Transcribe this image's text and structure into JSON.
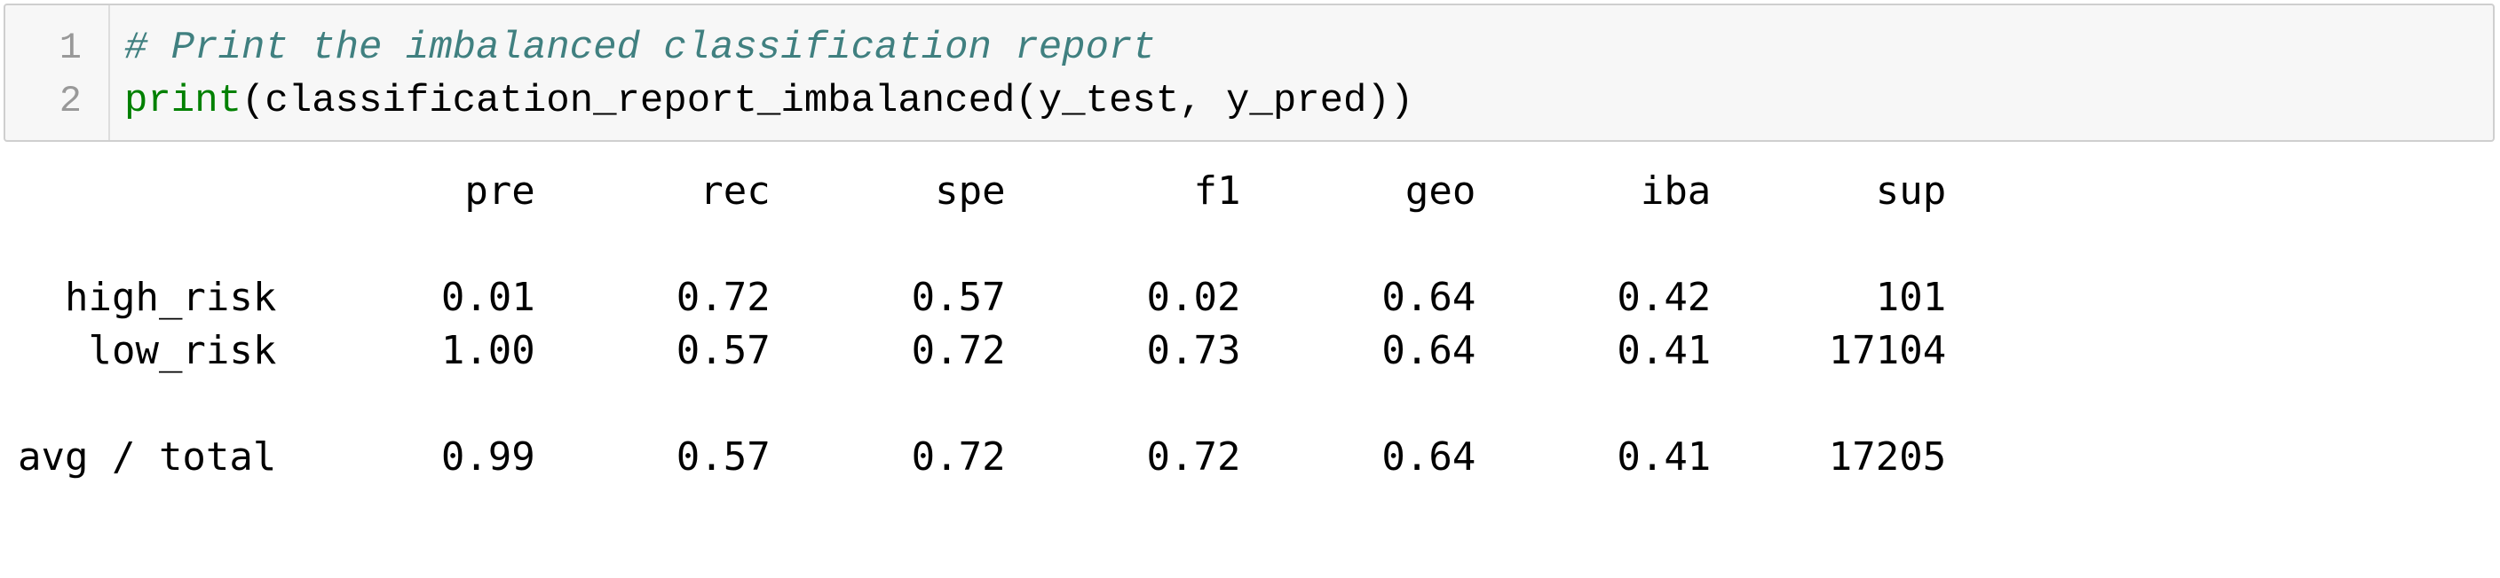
{
  "cell": {
    "line_numbers": [
      "1",
      "2"
    ],
    "comment": "# Print the imbalanced classification report",
    "code": {
      "builtin": "print",
      "rest": "(classification_report_imbalanced(y_test, y_pred))"
    }
  },
  "report": {
    "columns": [
      "pre",
      "rec",
      "spe",
      "f1",
      "geo",
      "iba",
      "sup"
    ],
    "rows": [
      {
        "label": "high_risk",
        "values": [
          "0.01",
          "0.72",
          "0.57",
          "0.02",
          "0.64",
          "0.42",
          "101"
        ]
      },
      {
        "label": "low_risk",
        "values": [
          "1.00",
          "0.57",
          "0.72",
          "0.73",
          "0.64",
          "0.41",
          "17104"
        ]
      }
    ],
    "total": {
      "label": "avg / total",
      "values": [
        "0.99",
        "0.57",
        "0.72",
        "0.72",
        "0.64",
        "0.41",
        "17205"
      ]
    }
  },
  "output_text": {
    "header": "                   pre       rec       spe        f1       geo       iba       sup",
    "row_high_risk": "  high_risk       0.01      0.72      0.57      0.02      0.64      0.42       101",
    "row_low_risk": "   low_risk       1.00      0.57      0.72      0.73      0.64      0.41     17104",
    "row_avg_total": "avg / total       0.99      0.57      0.72      0.72      0.64      0.41     17205"
  }
}
